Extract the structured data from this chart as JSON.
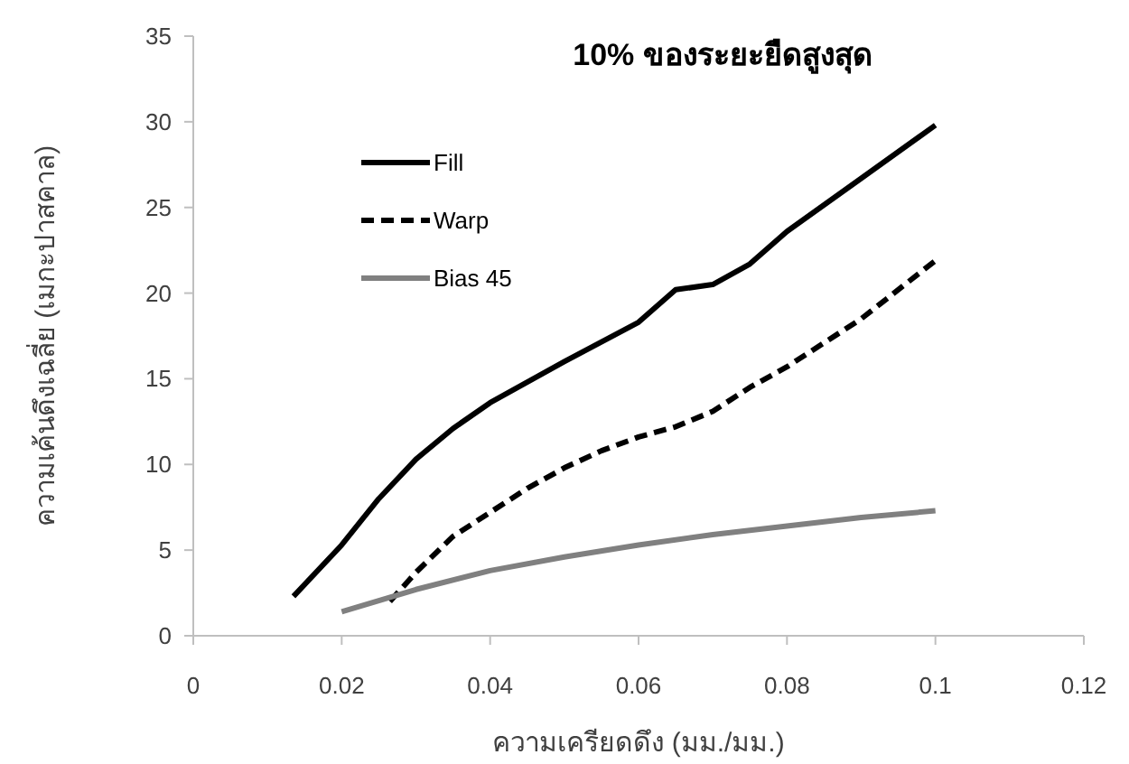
{
  "chart_data": {
    "type": "line",
    "title": "10% ของระยะยืดสูงสุด",
    "xlabel": "ความเครียดดึง (มม./มม.)",
    "ylabel": "ความเค้นดึงเฉลี่ย (เมกะปาสคาล)",
    "xlim": [
      0,
      0.12
    ],
    "xticks": [
      0,
      0.02,
      0.04,
      0.06,
      0.08,
      0.1,
      0.12
    ],
    "ylim": [
      0,
      35
    ],
    "yticks": [
      0,
      5,
      10,
      15,
      20,
      25,
      30,
      35
    ],
    "grid": false,
    "legend": "top left",
    "marker": "none",
    "series": [
      {
        "name": "Fill",
        "color": "#000000",
        "line_style": "solid",
        "x": [
          0.0135,
          0.02,
          0.025,
          0.03,
          0.035,
          0.04,
          0.05,
          0.06,
          0.065,
          0.07,
          0.075,
          0.08,
          0.09,
          0.1
        ],
        "values": [
          2.3,
          5.3,
          8.0,
          10.3,
          12.1,
          13.6,
          16.0,
          18.3,
          20.2,
          20.5,
          21.7,
          23.6,
          26.7,
          29.8
        ]
      },
      {
        "name": "Warp",
        "color": "#000000",
        "line_style": "dashed",
        "x": [
          0.0265,
          0.03,
          0.035,
          0.04,
          0.045,
          0.05,
          0.055,
          0.06,
          0.065,
          0.07,
          0.075,
          0.08,
          0.09,
          0.1
        ],
        "values": [
          2.0,
          3.7,
          5.8,
          7.2,
          8.6,
          9.8,
          10.8,
          11.6,
          12.2,
          13.1,
          14.5,
          15.7,
          18.5,
          21.9
        ]
      },
      {
        "name": "Bias 45",
        "color": "#808080",
        "line_style": "solid",
        "x": [
          0.02,
          0.03,
          0.04,
          0.05,
          0.06,
          0.07,
          0.08,
          0.09,
          0.1
        ],
        "values": [
          1.4,
          2.7,
          3.8,
          4.6,
          5.3,
          5.9,
          6.4,
          6.9,
          7.3
        ]
      }
    ]
  }
}
